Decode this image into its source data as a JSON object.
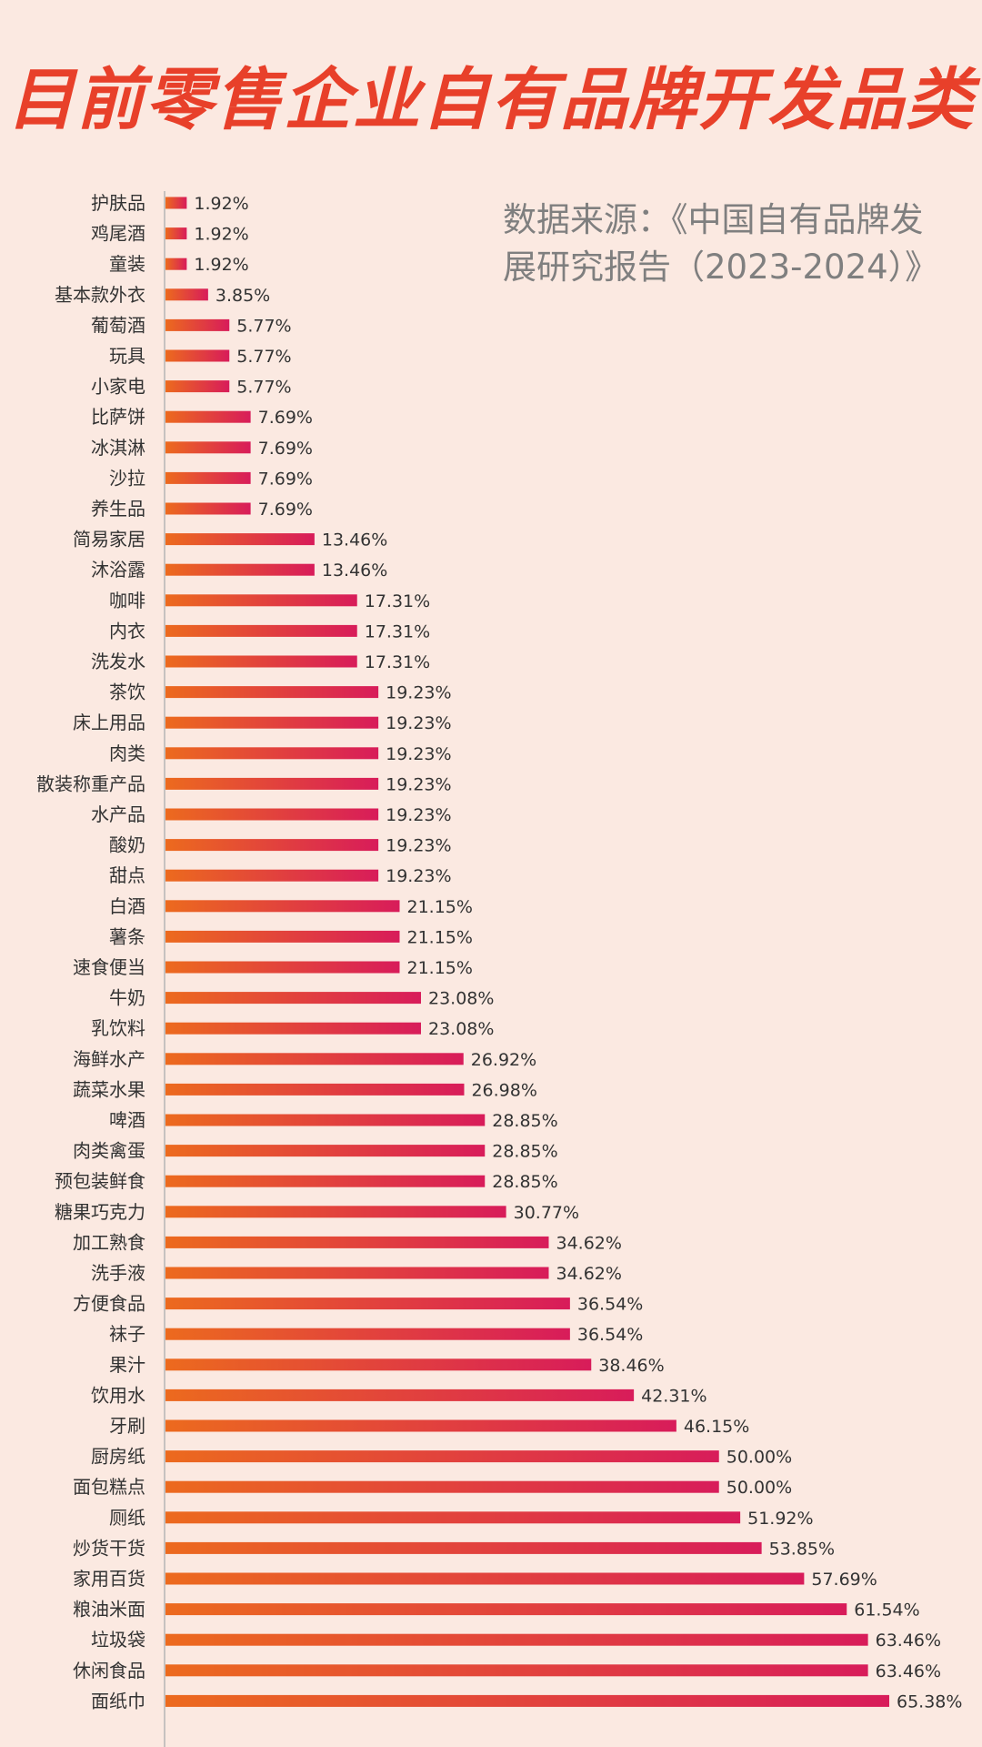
{
  "title": "目前零售企业自有品牌开发品类",
  "source": "数据来源：《中国自有品牌发展研究报告（2023-2024）》",
  "colors": {
    "title": "#e8402a",
    "bar_start": "#ec6a1e",
    "bar_end": "#d81c5a",
    "background": "#fbe9e1"
  },
  "chart_data": {
    "type": "bar",
    "orientation": "horizontal",
    "unit": "%",
    "categories": [
      "护肤品",
      "鸡尾酒",
      "童装",
      "基本款外衣",
      "葡萄酒",
      "玩具",
      "小家电",
      "比萨饼",
      "冰淇淋",
      "沙拉",
      "养生品",
      "简易家居",
      "沐浴露",
      "咖啡",
      "内衣",
      "洗发水",
      "茶饮",
      "床上用品",
      "肉类",
      "散装称重产品",
      "水产品",
      "酸奶",
      "甜点",
      "白酒",
      "薯条",
      "速食便当",
      "牛奶",
      "乳饮料",
      "海鲜水产",
      "蔬菜水果",
      "啤酒",
      "肉类禽蛋",
      "预包装鲜食",
      "糖果巧克力",
      "加工熟食",
      "洗手液",
      "方便食品",
      "袜子",
      "果汁",
      "饮用水",
      "牙刷",
      "厨房纸",
      "面包糕点",
      "厕纸",
      "炒货干货",
      "家用百货",
      "粮油米面",
      "垃圾袋",
      "休闲食品",
      "面纸巾"
    ],
    "values": [
      1.92,
      1.92,
      1.92,
      3.85,
      5.77,
      5.77,
      5.77,
      7.69,
      7.69,
      7.69,
      7.69,
      13.46,
      13.46,
      17.31,
      17.31,
      17.31,
      19.23,
      19.23,
      19.23,
      19.23,
      19.23,
      19.23,
      19.23,
      21.15,
      21.15,
      21.15,
      23.08,
      23.08,
      26.92,
      26.98,
      28.85,
      28.85,
      28.85,
      30.77,
      34.62,
      34.62,
      36.54,
      36.54,
      38.46,
      42.31,
      46.15,
      50.0,
      50.0,
      51.92,
      53.85,
      57.69,
      61.54,
      63.46,
      63.46,
      65.38
    ],
    "labels": [
      "1.92%",
      "1.92%",
      "1.92%",
      "3.85%",
      "5.77%",
      "5.77%",
      "5.77%",
      "7.69%",
      "7.69%",
      "7.69%",
      "7.69%",
      "13.46%",
      "13.46%",
      "17.31%",
      "17.31%",
      "17.31%",
      "19.23%",
      "19.23%",
      "19.23%",
      "19.23%",
      "19.23%",
      "19.23%",
      "19.23%",
      "21.15%",
      "21.15%",
      "21.15%",
      "23.08%",
      "23.08%",
      "26.92%",
      "26.98%",
      "28.85%",
      "28.85%",
      "28.85%",
      "30.77%",
      "34.62%",
      "34.62%",
      "36.54%",
      "36.54%",
      "38.46%",
      "42.31%",
      "46.15%",
      "50.00%",
      "50.00%",
      "51.92%",
      "53.85%",
      "57.69%",
      "61.54%",
      "63.46%",
      "63.46%",
      "65.38%"
    ],
    "xlim": [
      0,
      65.38
    ],
    "grid": false,
    "legend": "none"
  }
}
